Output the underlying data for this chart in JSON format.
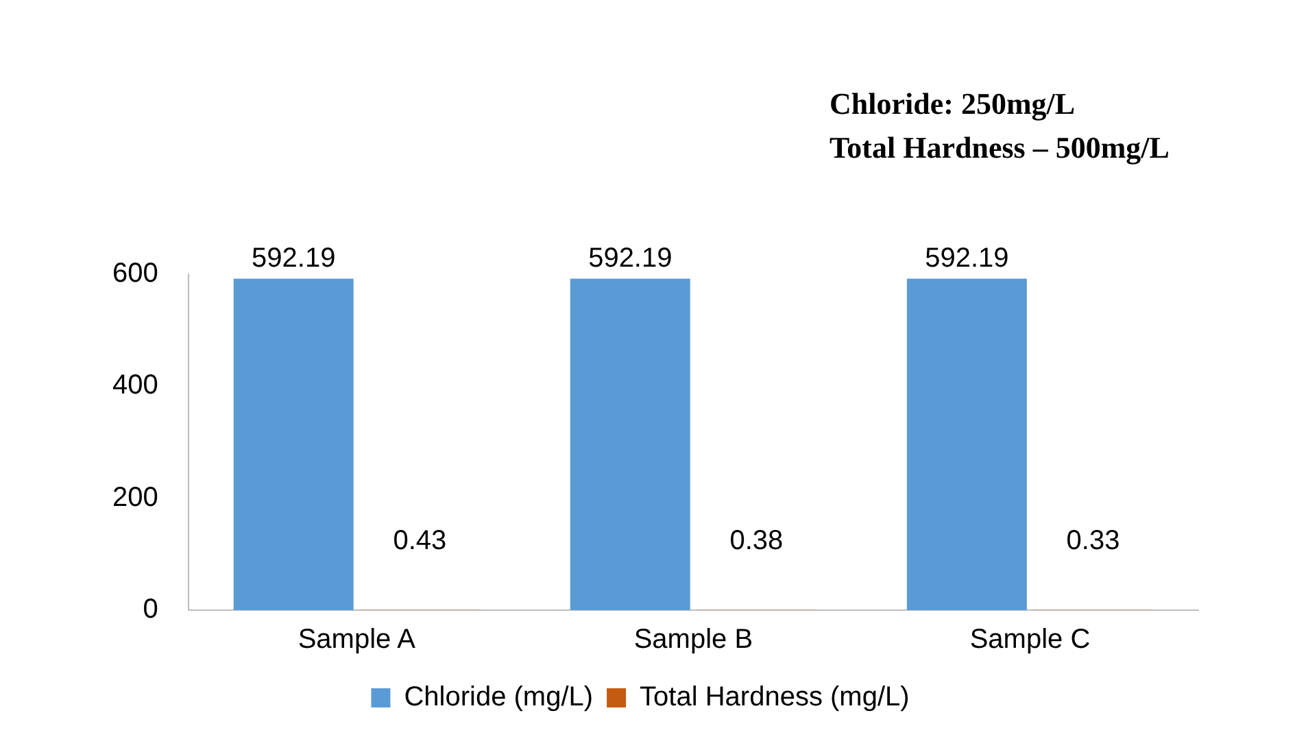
{
  "chart_data": {
    "type": "bar",
    "categories": [
      "Sample A",
      "Sample B",
      "Sample C"
    ],
    "series": [
      {
        "name": "Chloride (mg/L)",
        "color": "#5b9bd5",
        "values": [
          592.19,
          592.19,
          592.19
        ]
      },
      {
        "name": "Total Hardness (mg/L)",
        "color": "#c55a11",
        "values": [
          0.43,
          0.38,
          0.33
        ]
      }
    ],
    "ylim": [
      0,
      600
    ],
    "yticks": [
      0,
      200,
      400,
      600
    ],
    "data_labels": true,
    "legend": "bottom",
    "annotations": [
      "Chloride: 250mg/L",
      "Total Hardness – 500mg/L"
    ]
  }
}
